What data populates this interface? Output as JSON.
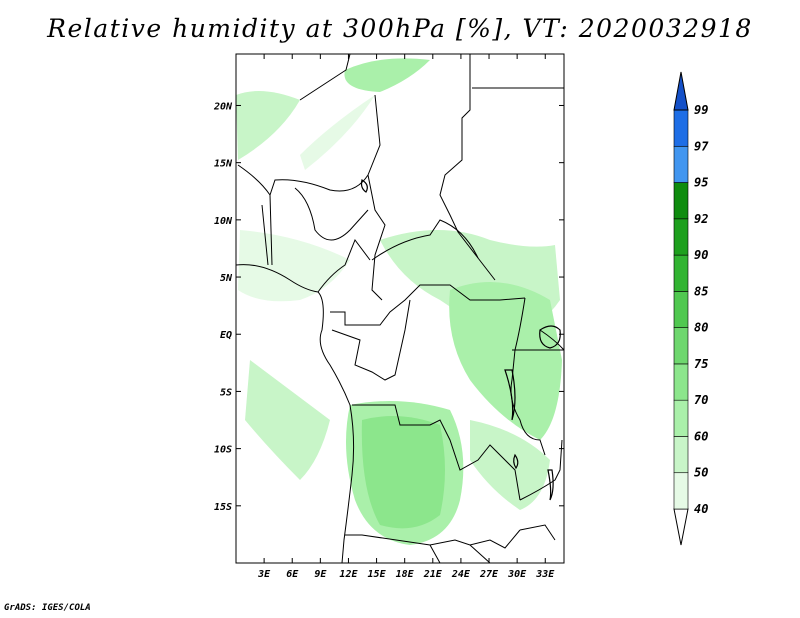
{
  "title": "Relative humidity at 300hPa [%], VT: 2020032918",
  "credit": "GrADS: IGES/COLA",
  "map": {
    "lon_range": [
      0,
      35
    ],
    "lat_range": [
      -20,
      24.5
    ],
    "lat_ticks": [
      {
        "value": 20,
        "label": "20N"
      },
      {
        "value": 15,
        "label": "15N"
      },
      {
        "value": 10,
        "label": "10N"
      },
      {
        "value": 5,
        "label": "5N"
      },
      {
        "value": 0,
        "label": "EQ"
      },
      {
        "value": -5,
        "label": "5S"
      },
      {
        "value": -10,
        "label": "10S"
      },
      {
        "value": -15,
        "label": "15S"
      }
    ],
    "lon_ticks": [
      {
        "value": 3,
        "label": "3E"
      },
      {
        "value": 6,
        "label": "6E"
      },
      {
        "value": 9,
        "label": "9E"
      },
      {
        "value": 12,
        "label": "12E"
      },
      {
        "value": 15,
        "label": "15E"
      },
      {
        "value": 18,
        "label": "18E"
      },
      {
        "value": 21,
        "label": "21E"
      },
      {
        "value": 24,
        "label": "24E"
      },
      {
        "value": 27,
        "label": "27E"
      },
      {
        "value": 30,
        "label": "30E"
      },
      {
        "value": 33,
        "label": "33E"
      }
    ]
  },
  "colorbar": {
    "levels": [
      "40",
      "50",
      "60",
      "70",
      "75",
      "80",
      "85",
      "90",
      "92",
      "95",
      "97",
      "99"
    ],
    "colors": [
      "#ffffff",
      "#e6fae6",
      "#c8f5c8",
      "#aaf0aa",
      "#8ce68c",
      "#6ed76e",
      "#50c850",
      "#32b432",
      "#1ea01e",
      "#0f8c0f",
      "#4296f0",
      "#1e6ee6",
      "#1450c8"
    ]
  }
}
